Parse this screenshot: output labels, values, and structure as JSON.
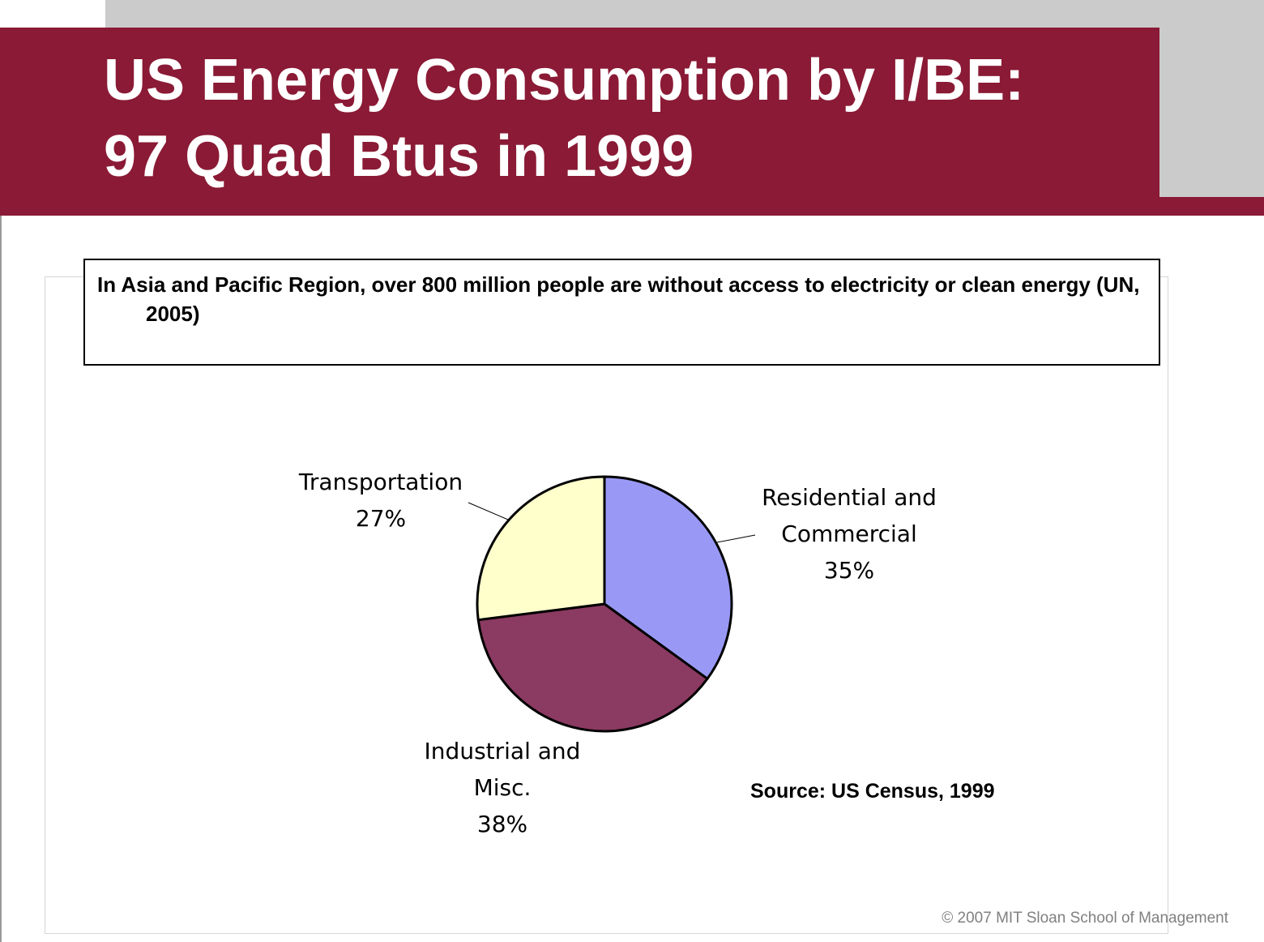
{
  "slide": {
    "title_line1": "US Energy Consumption by I/BE:",
    "title_line2": "97 Quad Btus in 1999",
    "callout": "In Asia and Pacific Region, over 800 million people are without access to electricity or clean energy (UN, 2005)",
    "source": "Source: US Census, 1999",
    "copyright": "© 2007 MIT Sloan School of Management"
  },
  "colors": {
    "title_band": "#8a1a35",
    "top_gray": "#cbcbcb"
  },
  "chart_data": {
    "type": "pie",
    "title": "",
    "slices": [
      {
        "label_lines": [
          "Residential and",
          "Commercial",
          "35%"
        ],
        "value": 35,
        "color": "#9999f5"
      },
      {
        "label_lines": [
          "Industrial and",
          "Misc.",
          "38%"
        ],
        "value": 38,
        "color": "#8b3a62"
      },
      {
        "label_lines": [
          "Transportation",
          "27%"
        ],
        "value": 27,
        "color": "#ffffcc"
      }
    ]
  }
}
